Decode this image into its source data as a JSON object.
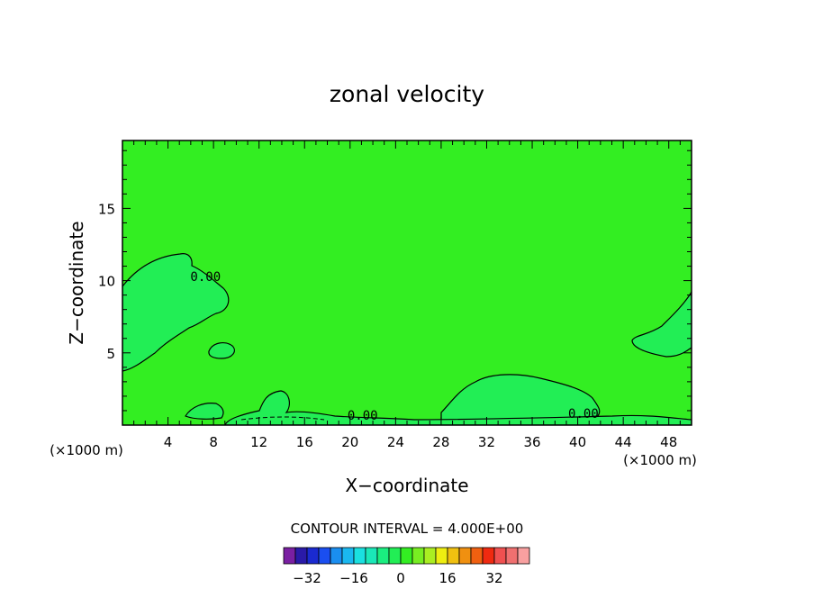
{
  "chart_data": {
    "type": "contour",
    "title": "zonal velocity",
    "xlabel": "X−coordinate",
    "ylabel": "Z−coordinate",
    "x_unit_label": "(×1000 m)",
    "y_unit_label": "(×1000 m)",
    "xlim": [
      0,
      50
    ],
    "ylim": [
      0,
      19.7
    ],
    "x_ticks": [
      4,
      8,
      12,
      16,
      20,
      24,
      28,
      32,
      36,
      40,
      44,
      48
    ],
    "y_ticks": [
      5,
      10,
      15
    ],
    "contour_labels": [
      {
        "text": "0.00",
        "x": 7.3,
        "y": 10.3
      },
      {
        "text": "0.00",
        "x": 21.1,
        "y": 0.7
      },
      {
        "text": "0.00",
        "x": 40.5,
        "y": 0.8
      }
    ],
    "background_color": "#33ee22",
    "region_color": "#22ee55",
    "contour_interval_text": "CONTOUR INTERVAL = 4.000E+00",
    "colorbar": {
      "colors": [
        "#7a1fa2",
        "#2a1aa8",
        "#1a2ad0",
        "#1a4ef0",
        "#1a8ef0",
        "#1ab8f0",
        "#1ae0e0",
        "#1ae8b8",
        "#1aee80",
        "#22ee55",
        "#33ee22",
        "#77ee22",
        "#aaee22",
        "#eeee11",
        "#f0c010",
        "#f09010",
        "#f06010",
        "#f02a10",
        "#f05050",
        "#f07070",
        "#f8a0a0"
      ],
      "tick_labels": [
        "−32",
        "−16",
        "0",
        "16",
        "32"
      ],
      "tick_values": [
        -32,
        -16,
        0,
        16,
        32
      ]
    }
  }
}
